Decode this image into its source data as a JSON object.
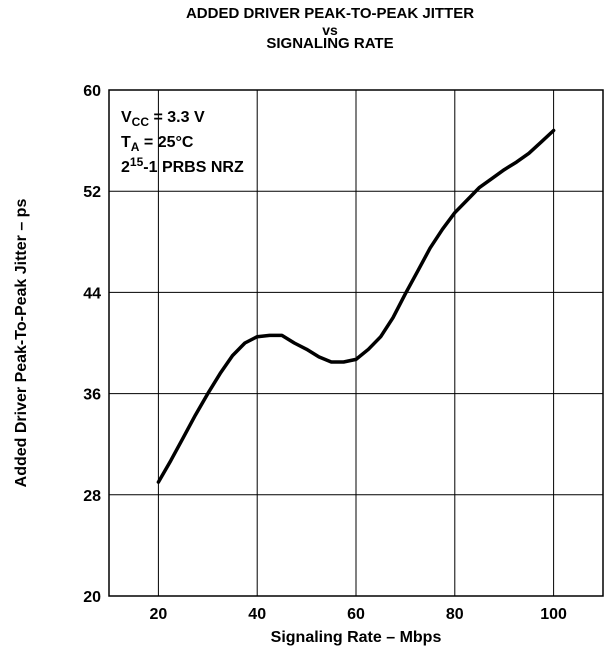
{
  "chart_data": {
    "type": "line",
    "title": [
      "ADDED DRIVER PEAK-TO-PEAK JITTER",
      "vs",
      "SIGNALING RATE"
    ],
    "xlabel": "Signaling Rate – Mbps",
    "ylabel": "Added Driver Peak-To-Peak Jitter – ps",
    "xlim": [
      10,
      110
    ],
    "ylim": [
      20,
      60
    ],
    "xticks": [
      20,
      40,
      60,
      80,
      100
    ],
    "yticks": [
      20,
      28,
      36,
      44,
      52,
      60
    ],
    "grid": true,
    "annotations": [
      {
        "main": "V",
        "sub": "CC",
        "rest": " = 3.3 V"
      },
      {
        "main": "T",
        "sub": "A",
        "rest": " = 25°C"
      },
      {
        "main": "2",
        "sup": "15",
        "rest": "-1 PRBS NRZ"
      }
    ],
    "series": [
      {
        "x": [
          20,
          22.5,
          25,
          27.5,
          30,
          32.5,
          35,
          37.5,
          40,
          42.5,
          45,
          47.5,
          50,
          52.5,
          55,
          57.5,
          60,
          62.5,
          65,
          67.5,
          70,
          72.5,
          75,
          77.5,
          80,
          82.5,
          85,
          87.5,
          90,
          92.5,
          95,
          97.5,
          100
        ],
        "y": [
          29.0,
          30.7,
          32.5,
          34.3,
          36.0,
          37.6,
          39.0,
          40.0,
          40.5,
          40.6,
          40.6,
          40.0,
          39.5,
          38.9,
          38.5,
          38.5,
          38.7,
          39.5,
          40.5,
          42.0,
          43.9,
          45.7,
          47.5,
          49.0,
          50.3,
          51.3,
          52.3,
          53.0,
          53.7,
          54.3,
          55.0,
          55.9,
          56.8
        ]
      }
    ]
  }
}
